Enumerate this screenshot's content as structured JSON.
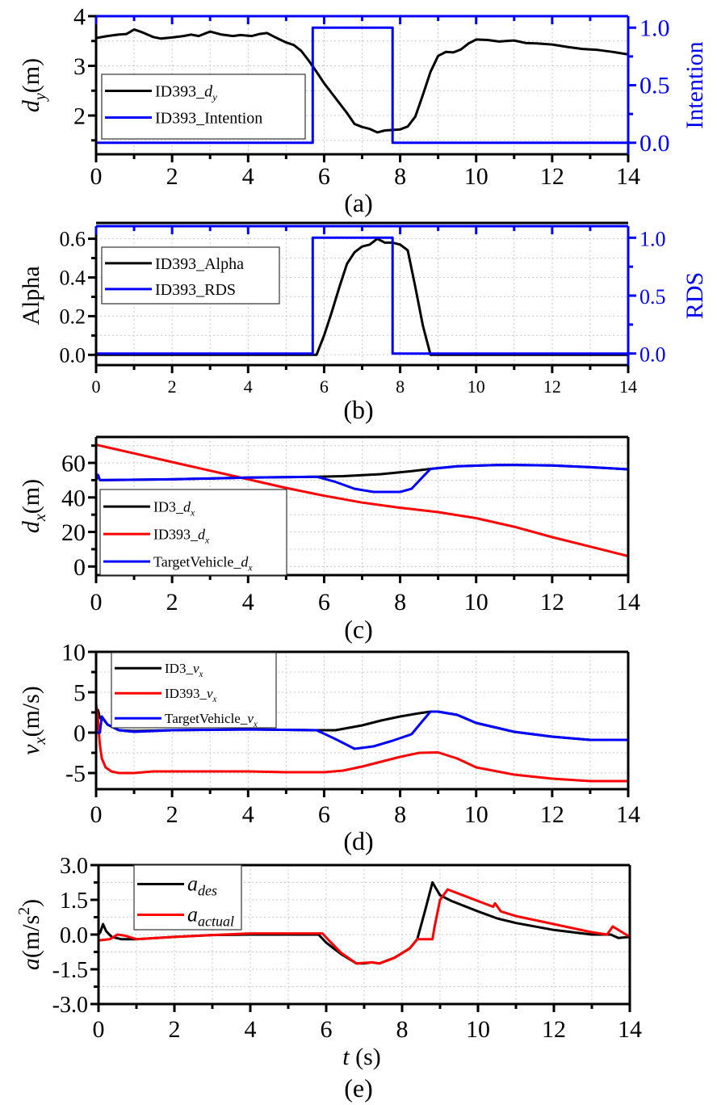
{
  "chart_data": [
    {
      "id": "a",
      "type": "line",
      "panel_label": "(a)",
      "xlabel": "",
      "xlim": [
        0,
        14
      ],
      "xticks": [
        "0",
        "2",
        "4",
        "6",
        "8",
        "10",
        "12",
        "14"
      ],
      "ylabel": "d_y(m)",
      "ylabel_main": "d",
      "ylabel_sub": "y",
      "ylabel_unit": "(m)",
      "ylim": [
        1.22,
        4.0
      ],
      "yticks": [
        "2",
        "3",
        "4"
      ],
      "y2label": "Intention",
      "y2lim": [
        -0.1,
        1.1
      ],
      "y2ticks": [
        "0.0",
        "0.5",
        "1.0"
      ],
      "grid": true,
      "legend_position": "middle-left",
      "series": [
        {
          "name": "ID393_d_y",
          "legend_main": "ID393_",
          "legend_italic": "d",
          "legend_sub": "y",
          "color": "#000000",
          "axis": "left",
          "x": [
            0,
            0.3,
            0.6,
            0.8,
            1.0,
            1.2,
            1.5,
            1.7,
            2.0,
            2.3,
            2.5,
            2.7,
            3.0,
            3.3,
            3.6,
            3.8,
            4.1,
            4.3,
            4.5,
            4.7,
            5.0,
            5.2,
            5.4,
            5.6,
            5.8,
            6.0,
            6.3,
            6.6,
            6.8,
            7.0,
            7.2,
            7.4,
            7.6,
            7.8,
            8.0,
            8.2,
            8.4,
            8.6,
            8.8,
            9.0,
            9.2,
            9.4,
            9.6,
            9.8,
            10.0,
            10.3,
            10.6,
            11.0,
            11.3,
            11.6,
            12.0,
            12.4,
            12.8,
            13.2,
            13.6,
            14.0
          ],
          "y": [
            3.56,
            3.6,
            3.63,
            3.64,
            3.73,
            3.68,
            3.58,
            3.55,
            3.57,
            3.6,
            3.63,
            3.6,
            3.69,
            3.63,
            3.6,
            3.62,
            3.6,
            3.64,
            3.66,
            3.58,
            3.47,
            3.42,
            3.3,
            3.1,
            2.88,
            2.65,
            2.35,
            2.05,
            1.83,
            1.77,
            1.73,
            1.66,
            1.7,
            1.71,
            1.72,
            1.78,
            1.98,
            2.42,
            2.88,
            3.2,
            3.28,
            3.27,
            3.33,
            3.45,
            3.53,
            3.52,
            3.49,
            3.51,
            3.46,
            3.45,
            3.43,
            3.38,
            3.34,
            3.32,
            3.28,
            3.23
          ]
        },
        {
          "name": "ID393_Intention",
          "legend_main": "ID393_Intention",
          "color": "#0000ff",
          "axis": "right",
          "x": [
            0,
            5.7,
            5.7,
            7.8,
            7.8,
            14
          ],
          "y": [
            0,
            0,
            1,
            1,
            0,
            0
          ]
        }
      ]
    },
    {
      "id": "b",
      "type": "line",
      "panel_label": "(b)",
      "xlabel": "",
      "xlim": [
        0,
        14
      ],
      "xticks": [
        "0",
        "2",
        "4",
        "6",
        "8",
        "10",
        "12",
        "14"
      ],
      "ylabel": "Alpha",
      "ylim": [
        -0.053,
        0.665
      ],
      "yticks": [
        "0.0",
        "0.2",
        "0.4",
        "0.6"
      ],
      "y2label": "RDS",
      "y2lim": [
        -0.1,
        1.1
      ],
      "y2ticks": [
        "0.0",
        "0.5",
        "1.0"
      ],
      "grid": true,
      "legend_position": "top-left",
      "series": [
        {
          "name": "ID393_Alpha",
          "legend_main": "ID393_Alpha",
          "color": "#000000",
          "axis": "left",
          "x": [
            0,
            5.8,
            6.0,
            6.2,
            6.4,
            6.6,
            6.8,
            7.0,
            7.2,
            7.4,
            7.6,
            7.8,
            8.0,
            8.2,
            8.4,
            8.6,
            8.8,
            10.6,
            14
          ],
          "y": [
            0,
            0,
            0.1,
            0.22,
            0.35,
            0.47,
            0.53,
            0.56,
            0.57,
            0.6,
            0.58,
            0.58,
            0.57,
            0.54,
            0.35,
            0.15,
            0,
            0,
            0
          ]
        },
        {
          "name": "ID393_RDS",
          "legend_main": "ID393_RDS",
          "color": "#0000ff",
          "axis": "right",
          "x": [
            0,
            5.7,
            5.7,
            7.8,
            7.8,
            14
          ],
          "y": [
            0,
            0,
            1,
            1,
            0,
            0
          ]
        }
      ]
    },
    {
      "id": "c",
      "type": "line",
      "panel_label": "(c)",
      "xlabel": "",
      "xlim": [
        0,
        14
      ],
      "xticks": [
        "0",
        "2",
        "4",
        "6",
        "8",
        "10",
        "12",
        "14"
      ],
      "ylabel": "d_x(m)",
      "ylabel_main": "d",
      "ylabel_sub": "x",
      "ylabel_unit": "(m)",
      "ylim": [
        -5,
        75
      ],
      "yticks": [
        "0",
        "20",
        "40",
        "60"
      ],
      "grid": true,
      "legend_position": "bottom-left",
      "series": [
        {
          "name": "ID3_d_x",
          "legend_main": "ID3_",
          "legend_italic": "d",
          "legend_sub": "x",
          "color": "#000000",
          "x": [
            0,
            0.05,
            0.1,
            2,
            4,
            5.8,
            6.5,
            7.5,
            8.2,
            8.8,
            9.5,
            10.5,
            11,
            12,
            13,
            14
          ],
          "y": [
            50,
            53,
            50,
            50.5,
            51.5,
            52,
            52.3,
            53.5,
            55,
            56.5,
            58,
            58.7,
            58.8,
            58.5,
            57.5,
            56.3
          ]
        },
        {
          "name": "ID393_d_x",
          "legend_main": "ID393_",
          "legend_italic": "d",
          "legend_sub": "x",
          "color": "#ff0000",
          "x": [
            0,
            1,
            2,
            3,
            4,
            5,
            6,
            7,
            8,
            9,
            10,
            11,
            12,
            13,
            14
          ],
          "y": [
            70.5,
            65.5,
            60.5,
            55.5,
            50.5,
            45.5,
            41,
            37,
            34,
            31.5,
            28,
            23,
            17,
            11.5,
            6
          ]
        },
        {
          "name": "TargetVehicle_d_x",
          "legend_main": "TargetVehicle_",
          "legend_italic": "d",
          "legend_sub": "x",
          "color": "#0000ff",
          "x": [
            0,
            0.05,
            0.1,
            2,
            4,
            5.8,
            6.3,
            6.8,
            7.3,
            8.0,
            8.3,
            8.6,
            8.8,
            9.5,
            10.5,
            11,
            12,
            13,
            14
          ],
          "y": [
            50,
            53,
            50,
            50.5,
            51.5,
            52,
            49,
            45,
            43.2,
            43.2,
            45,
            52,
            56.5,
            58,
            58.7,
            58.8,
            58.5,
            57.5,
            56.3
          ]
        }
      ]
    },
    {
      "id": "d",
      "type": "line",
      "panel_label": "(d)",
      "xlabel": "",
      "xlim": [
        0,
        14
      ],
      "xticks": [
        "0",
        "2",
        "4",
        "6",
        "8",
        "10",
        "12",
        "14"
      ],
      "ylabel": "v_x(m/s)",
      "ylabel_main": "v",
      "ylabel_sub": "x",
      "ylabel_unit": "(m/s)",
      "ylim": [
        -7,
        10
      ],
      "yticks": [
        "-5",
        "0",
        "5",
        "10"
      ],
      "grid": true,
      "legend_position": "top-left",
      "series": [
        {
          "name": "ID3_v_x",
          "legend_main": "ID3_",
          "legend_italic": "v",
          "legend_sub": "x",
          "color": "#000000",
          "x": [
            0,
            0.05,
            0.1,
            0.15,
            0.3,
            0.6,
            1,
            2,
            4,
            5.8,
            6.3,
            7,
            7.5,
            8,
            8.5,
            8.8,
            9,
            9.5,
            10,
            11,
            12,
            13,
            14
          ],
          "y": [
            0,
            2.8,
            1.8,
            1.9,
            1,
            0.3,
            0.2,
            0.3,
            0.4,
            0.3,
            0.3,
            0.9,
            1.5,
            2.0,
            2.4,
            2.6,
            2.6,
            2.2,
            1.2,
            0.1,
            -0.5,
            -0.9,
            -0.9
          ]
        },
        {
          "name": "ID393_v_x",
          "legend_main": "ID393_",
          "legend_italic": "v",
          "legend_sub": "x",
          "color": "#ff0000",
          "x": [
            0,
            0.05,
            0.1,
            0.15,
            0.25,
            0.4,
            0.6,
            1,
            1.5,
            2,
            4,
            5,
            6,
            6.5,
            7,
            7.5,
            8,
            8.5,
            9,
            9.5,
            10,
            11,
            12,
            13,
            14
          ],
          "y": [
            3.6,
            1.5,
            -1.5,
            -3.2,
            -4.3,
            -4.8,
            -5.0,
            -5.0,
            -4.8,
            -4.8,
            -4.8,
            -4.9,
            -4.9,
            -4.7,
            -4.2,
            -3.6,
            -3.0,
            -2.5,
            -2.45,
            -3.2,
            -4.3,
            -5.2,
            -5.7,
            -6.0,
            -6.0
          ]
        },
        {
          "name": "TargetVehicle_v_x",
          "legend_main": "TargetVehicle_",
          "legend_italic": "v",
          "legend_sub": "x",
          "color": "#0000ff",
          "x": [
            0,
            0.1,
            0.15,
            0.3,
            0.6,
            1,
            2,
            4,
            5.8,
            6.3,
            6.8,
            7.3,
            7.8,
            8.3,
            8.6,
            8.8,
            9,
            9.5,
            10,
            11,
            12,
            13,
            14
          ],
          "y": [
            0,
            0,
            2,
            1,
            0.3,
            0.1,
            0.3,
            0.4,
            0.3,
            -0.8,
            -2.0,
            -1.7,
            -1.0,
            -0.2,
            1.5,
            2.6,
            2.6,
            2.2,
            1.2,
            0.1,
            -0.5,
            -0.9,
            -0.9
          ]
        }
      ]
    },
    {
      "id": "e",
      "type": "line",
      "panel_label": "(e)",
      "xlabel": "t (s)",
      "xlabel_italic": "t",
      "xlabel_unit": " (s)",
      "xlim": [
        0,
        14
      ],
      "xticks": [
        "0",
        "2",
        "4",
        "6",
        "8",
        "10",
        "12",
        "14"
      ],
      "ylabel": "a(m/s^2)",
      "ylabel_main": "a",
      "ylabel_unit": "(m/s",
      "ylabel_sup": "2",
      "ylabel_close": ")",
      "ylim": [
        -3.0,
        3.0
      ],
      "yticks": [
        "-3.0",
        "-1.5",
        "0.0",
        "1.5",
        "3.0"
      ],
      "grid": true,
      "legend_position": "top-left",
      "series": [
        {
          "name": "a_des",
          "legend_main": "a",
          "legend_sub": "des",
          "color": "#000000",
          "x": [
            0,
            0.05,
            0.12,
            0.2,
            0.35,
            0.6,
            1,
            2,
            3,
            4,
            5,
            5.8,
            6.0,
            6.4,
            6.8,
            7.0,
            7.2,
            7.4,
            7.8,
            8.2,
            8.4,
            8.6,
            8.8,
            9.0,
            9.3,
            10,
            10.5,
            11,
            12,
            13,
            13.5,
            13.7,
            14
          ],
          "y": [
            0,
            0.1,
            0.45,
            0.15,
            -0.1,
            -0.2,
            -0.2,
            -0.1,
            -0.02,
            0,
            0,
            0,
            -0.35,
            -0.85,
            -1.25,
            -1.25,
            -1.2,
            -1.25,
            -1.0,
            -0.6,
            -0.2,
            1.0,
            2.25,
            1.7,
            1.45,
            1.0,
            0.7,
            0.5,
            0.2,
            0.0,
            0.0,
            -0.15,
            -0.1
          ]
        },
        {
          "name": "a_actual",
          "legend_main": "a",
          "legend_sub": "actual",
          "color": "#ff0000",
          "x": [
            0,
            0.3,
            0.5,
            0.7,
            1,
            2,
            3,
            4,
            5,
            5.9,
            6.1,
            6.4,
            6.8,
            7.0,
            7.2,
            7.4,
            7.8,
            8.2,
            8.4,
            8.8,
            8.85,
            9.0,
            9.2,
            9.6,
            10.4,
            10.45,
            10.6,
            11,
            12,
            13,
            13.4,
            13.55,
            13.8,
            14
          ],
          "y": [
            -0.25,
            -0.2,
            0,
            -0.05,
            -0.2,
            -0.1,
            -0.02,
            0.05,
            0.05,
            0.05,
            -0.3,
            -0.8,
            -1.25,
            -1.22,
            -1.2,
            -1.25,
            -1.0,
            -0.6,
            -0.2,
            -0.2,
            0.3,
            1.5,
            1.95,
            1.7,
            1.2,
            1.35,
            1.0,
            0.8,
            0.45,
            0.1,
            0.0,
            0.35,
            0.1,
            -0.1
          ]
        }
      ]
    }
  ]
}
